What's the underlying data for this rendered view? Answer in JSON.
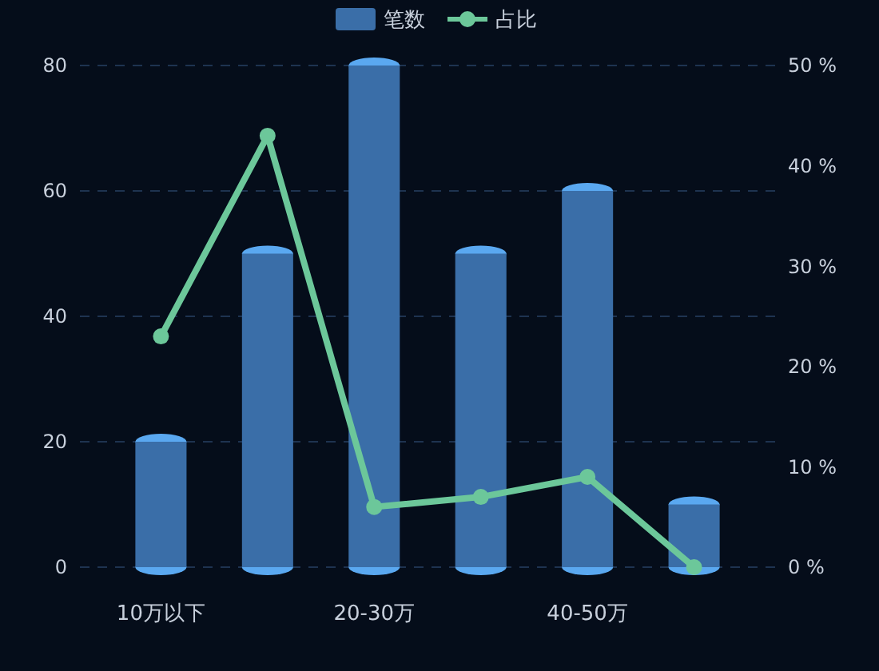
{
  "chart_data": {
    "type": "bar",
    "categories": [
      "10万以下",
      null,
      "20-30万",
      null,
      "40-50万",
      null
    ],
    "series": [
      {
        "name": "笔数",
        "color": "#3a6ea8",
        "values": [
          20,
          50,
          80,
          50,
          60,
          10
        ]
      },
      {
        "name": "占比",
        "type": "line",
        "axis": "y2",
        "color": "#6cc79a",
        "values": [
          23,
          43,
          6,
          7,
          9,
          0
        ]
      }
    ],
    "ylim": [
      0,
      80
    ],
    "yticks": [
      0,
      20,
      40,
      60,
      80
    ],
    "y2lim": [
      0,
      50
    ],
    "y2ticks": [
      {
        "value": 0,
        "label": "0 %"
      },
      {
        "value": 10,
        "label": "10 %"
      },
      {
        "value": 20,
        "label": "20 %"
      },
      {
        "value": 30,
        "label": "30 %"
      },
      {
        "value": 40,
        "label": "40 %"
      },
      {
        "value": 50,
        "label": "50 %"
      }
    ],
    "grid": "y",
    "legend": "top",
    "marker": "circle",
    "line_style": "solid"
  }
}
